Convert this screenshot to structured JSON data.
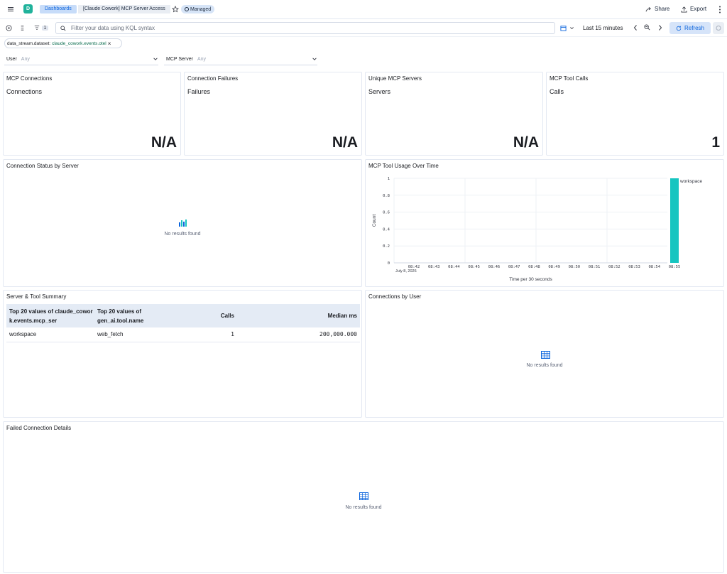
{
  "header": {
    "breadcrumbs": [
      "Dashboards",
      "[Claude Cowork] MCP Server Access"
    ],
    "managed_badge": "Managed",
    "share_label": "Share",
    "export_label": "Export"
  },
  "querybar": {
    "filter_count": "1",
    "search_placeholder": "Filter your data using KQL syntax",
    "time_range": "Last 15 minutes",
    "refresh_label": "Refresh"
  },
  "filter_pill": {
    "field": "data_stream.dataset:",
    "value": "claude_cowork.events.otel"
  },
  "controls": [
    {
      "label": "User",
      "value": "Any"
    },
    {
      "label": "MCP Server",
      "value": "Any"
    }
  ],
  "metrics": [
    {
      "title": "MCP Connections",
      "label": "Connections",
      "value": "N/A"
    },
    {
      "title": "Connection Failures",
      "label": "Failures",
      "value": "N/A"
    },
    {
      "title": "Unique MCP Servers",
      "label": "Servers",
      "value": "N/A"
    },
    {
      "title": "MCP Tool Calls",
      "label": "Calls",
      "value": "1"
    }
  ],
  "panels": {
    "status_by_server": {
      "title": "Connection Status by Server",
      "empty": "No results found"
    },
    "tool_usage": {
      "title": "MCP Tool Usage Over Time"
    },
    "summary": {
      "title": "Server & Tool Summary",
      "columns": [
        "Top 20 values of claude_cowork.events.mcp_ser",
        "Top 20 values of gen_ai.tool.name",
        "Calls",
        "Median ms"
      ],
      "rows": [
        [
          "workspace",
          "web_fetch",
          "1",
          "200,000.000"
        ]
      ]
    },
    "by_user": {
      "title": "Connections by User",
      "empty": "No results found"
    },
    "failed": {
      "title": "Failed Connection Details",
      "empty": "No results found"
    }
  },
  "chart_data": {
    "type": "bar",
    "title": "MCP Tool Usage Over Time",
    "xlabel": "Time per 30 seconds",
    "ylabel": "Count",
    "date_label": "July 8, 2026",
    "x_ticks": [
      "08:42",
      "08:43",
      "08:44",
      "08:45",
      "08:46",
      "08:47",
      "08:48",
      "08:49",
      "08:50",
      "08:51",
      "08:52",
      "08:53",
      "08:54",
      "08:55"
    ],
    "y_ticks": [
      "0",
      "0.2",
      "0.4",
      "0.6",
      "0.8",
      "1"
    ],
    "ylim": [
      0,
      1
    ],
    "series": [
      {
        "name": "workspace",
        "points": [
          {
            "x": "08:55",
            "y": 1
          }
        ],
        "color": "#16c5c0"
      }
    ],
    "legend": "top-right",
    "grid": true
  }
}
